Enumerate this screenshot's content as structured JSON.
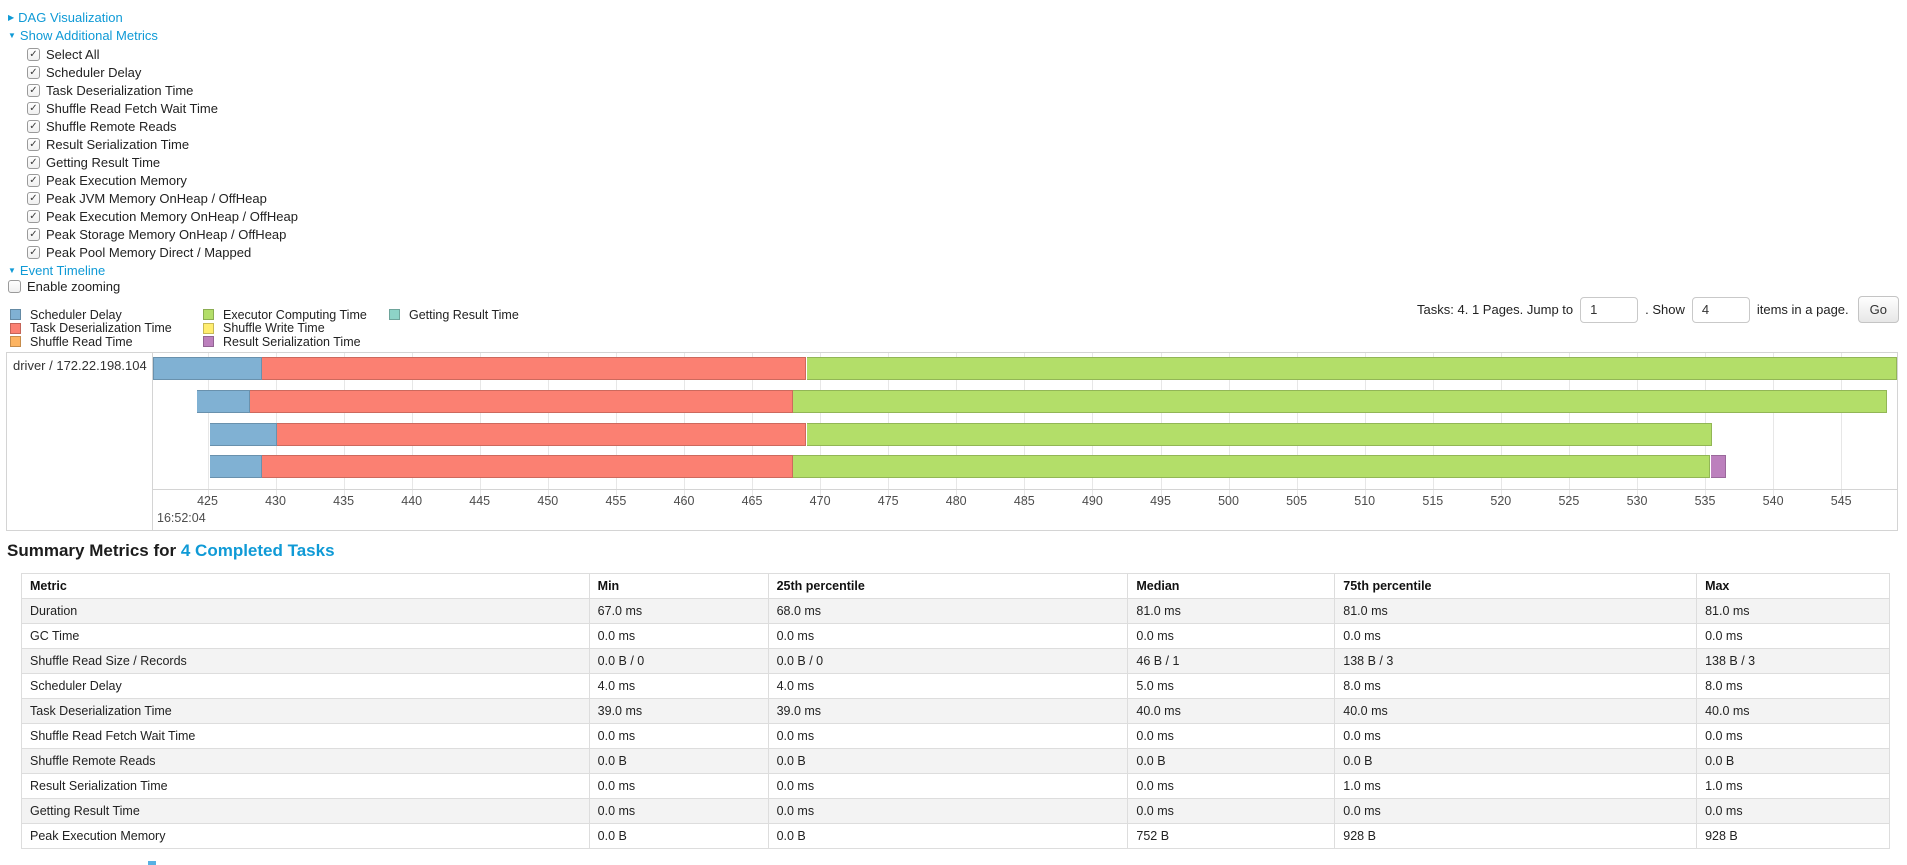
{
  "accent": {
    "link_color": "#0f9ad6"
  },
  "controls": {
    "dag_toggle": "DAG Visualization",
    "metrics_toggle": "Show Additional Metrics",
    "timeline_toggle": "Event Timeline",
    "metric_checkboxes": [
      "Select All",
      "Scheduler Delay",
      "Task Deserialization Time",
      "Shuffle Read Fetch Wait Time",
      "Shuffle Remote Reads",
      "Result Serialization Time",
      "Getting Result Time",
      "Peak Execution Memory",
      "Peak JVM Memory OnHeap / OffHeap",
      "Peak Execution Memory OnHeap / OffHeap",
      "Peak Storage Memory OnHeap / OffHeap",
      "Peak Pool Memory Direct / Mapped"
    ],
    "metric_checkboxes_checked": true,
    "enable_zooming_label": "Enable zooming",
    "enable_zooming_checked": false
  },
  "legend": {
    "columns": [
      [
        {
          "label": "Scheduler Delay",
          "color": "#80B1D3"
        },
        {
          "label": "Task Deserialization Time",
          "color": "#FB8072"
        },
        {
          "label": "Shuffle Read Time",
          "color": "#FDB462"
        }
      ],
      [
        {
          "label": "Executor Computing Time",
          "color": "#B3DE69"
        },
        {
          "label": "Shuffle Write Time",
          "color": "#FFED6F"
        },
        {
          "label": "Result Serialization Time",
          "color": "#BC80BD"
        }
      ],
      [
        {
          "label": "Getting Result Time",
          "color": "#8DD3C7"
        }
      ]
    ]
  },
  "pagination": {
    "tasks_text": "Tasks: 4. 1 Pages. Jump to",
    "jump_value": "1",
    "show_text": ". Show",
    "show_value": "4",
    "items_text": "items in a page.",
    "go_label": "Go"
  },
  "timeline": {
    "group_label": "driver / 172.22.198.104",
    "axis": {
      "major_label": "16:52:04",
      "unit": "ms within second 16:52:04",
      "window_start_ms": 421,
      "window_end_ms": 549.1,
      "tick_first": 425,
      "tick_last": 550,
      "tick_step": 5
    },
    "colors": {
      "scheduler_delay": "#80B1D3",
      "task_deserialization": "#FB8072",
      "shuffle_read": "#FDB462",
      "executor_computing": "#B3DE69",
      "shuffle_write": "#FFED6F",
      "result_serialization": "#BC80BD",
      "getting_result": "#8DD3C7"
    },
    "tasks": [
      {
        "name": "task-row-1",
        "start_ms": 421.0,
        "segments": [
          {
            "metric": "scheduler_delay",
            "end_ms": 429.0
          },
          {
            "metric": "task_deserialization",
            "end_ms": 469.0
          },
          {
            "metric": "executor_computing",
            "end_ms": 549.1
          }
        ]
      },
      {
        "name": "task-row-2",
        "start_ms": 424.2,
        "segments": [
          {
            "metric": "scheduler_delay",
            "end_ms": 428.1
          },
          {
            "metric": "task_deserialization",
            "end_ms": 468.0
          },
          {
            "metric": "executor_computing",
            "end_ms": 548.4
          }
        ]
      },
      {
        "name": "task-row-3",
        "start_ms": 425.2,
        "segments": [
          {
            "metric": "scheduler_delay",
            "end_ms": 430.1
          },
          {
            "metric": "task_deserialization",
            "end_ms": 469.0
          },
          {
            "metric": "executor_computing",
            "end_ms": 535.5
          }
        ]
      },
      {
        "name": "task-row-4",
        "start_ms": 425.2,
        "segments": [
          {
            "metric": "scheduler_delay",
            "end_ms": 429.0
          },
          {
            "metric": "task_deserialization",
            "end_ms": 468.0
          },
          {
            "metric": "executor_computing",
            "end_ms": 535.4
          },
          {
            "metric": "result_serialization",
            "end_ms": 536.5
          }
        ]
      }
    ]
  },
  "summary": {
    "title": "Summary Metrics for",
    "title_link": "4 Completed Tasks",
    "columns": [
      "Metric",
      "Min",
      "25th percentile",
      "Median",
      "75th percentile",
      "Max"
    ],
    "rows": [
      {
        "metric": "Duration",
        "values": [
          "67.0 ms",
          "68.0 ms",
          "81.0 ms",
          "81.0 ms",
          "81.0 ms"
        ]
      },
      {
        "metric": "GC Time",
        "values": [
          "0.0 ms",
          "0.0 ms",
          "0.0 ms",
          "0.0 ms",
          "0.0 ms"
        ]
      },
      {
        "metric": "Shuffle Read Size / Records",
        "values": [
          "0.0 B / 0",
          "0.0 B / 0",
          "46 B / 1",
          "138 B / 3",
          "138 B / 3"
        ]
      },
      {
        "metric": "Scheduler Delay",
        "values": [
          "4.0 ms",
          "4.0 ms",
          "5.0 ms",
          "8.0 ms",
          "8.0 ms"
        ]
      },
      {
        "metric": "Task Deserialization Time",
        "values": [
          "39.0 ms",
          "39.0 ms",
          "40.0 ms",
          "40.0 ms",
          "40.0 ms"
        ]
      },
      {
        "metric": "Shuffle Read Fetch Wait Time",
        "values": [
          "0.0 ms",
          "0.0 ms",
          "0.0 ms",
          "0.0 ms",
          "0.0 ms"
        ]
      },
      {
        "metric": "Shuffle Remote Reads",
        "values": [
          "0.0 B",
          "0.0 B",
          "0.0 B",
          "0.0 B",
          "0.0 B"
        ]
      },
      {
        "metric": "Result Serialization Time",
        "values": [
          "0.0 ms",
          "0.0 ms",
          "0.0 ms",
          "1.0 ms",
          "1.0 ms"
        ]
      },
      {
        "metric": "Getting Result Time",
        "values": [
          "0.0 ms",
          "0.0 ms",
          "0.0 ms",
          "0.0 ms",
          "0.0 ms"
        ]
      },
      {
        "metric": "Peak Execution Memory",
        "values": [
          "0.0 B",
          "0.0 B",
          "752 B",
          "928 B",
          "928 B"
        ]
      }
    ]
  }
}
